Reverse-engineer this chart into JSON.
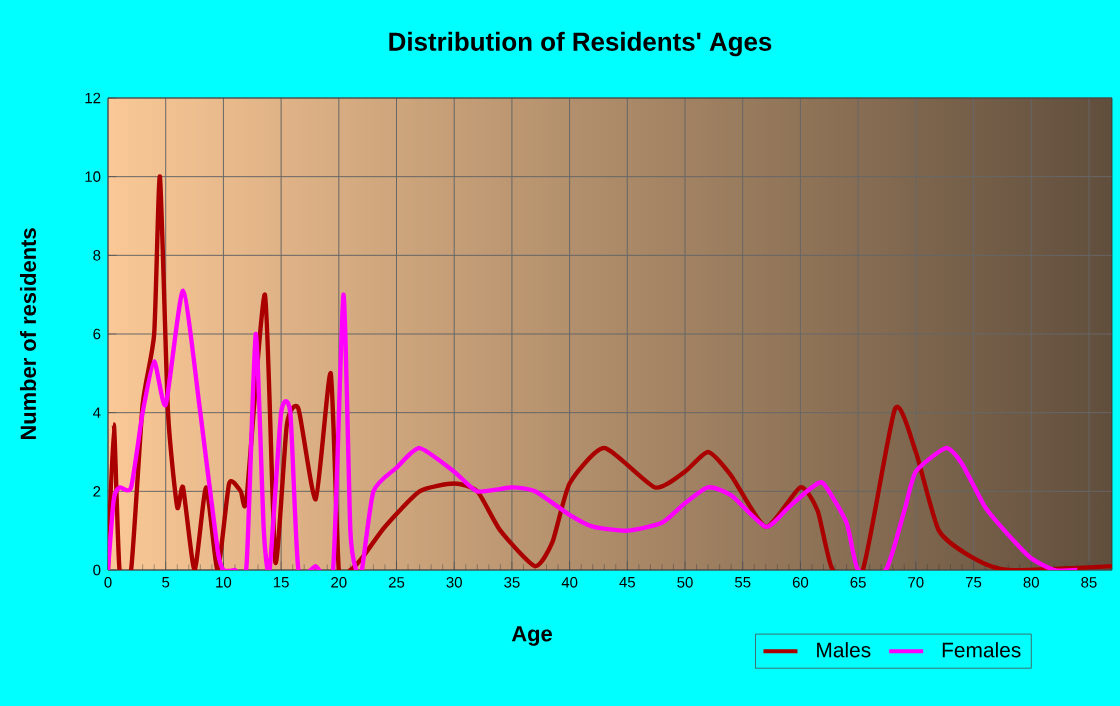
{
  "chart_data": {
    "type": "line",
    "title": "Distribution of Residents' Ages",
    "xlabel": "Age",
    "ylabel": "Number of residents",
    "xlim": [
      0,
      87
    ],
    "xticks": [
      0,
      5,
      10,
      15,
      20,
      25,
      30,
      35,
      40,
      45,
      50,
      55,
      60,
      65,
      70,
      75,
      80,
      85
    ],
    "ylim": [
      0,
      12
    ],
    "yticks": [
      0,
      2,
      4,
      6,
      8,
      10,
      12
    ],
    "grid": true,
    "legend": "bottom right",
    "marker": "none",
    "line_style": "solid",
    "series": [
      {
        "name": "Males",
        "color": "#aa0000",
        "x": [
          0,
          0.5,
          1,
          2,
          3,
          4,
          4.5,
          5.2,
          6,
          6.5,
          7.5,
          8.5,
          9.5,
          10.5,
          11.5,
          12,
          13.6,
          14.5,
          15.5,
          16.5,
          18,
          19.3,
          20,
          21,
          22,
          24,
          27,
          30,
          32,
          34,
          37,
          38.5,
          40,
          43,
          47.4,
          50,
          52,
          54,
          57,
          60,
          61.5,
          62.8,
          65.4,
          68.2,
          70,
          72,
          75,
          78,
          87
        ],
        "values": [
          0,
          3.7,
          0,
          0,
          4.2,
          6,
          10,
          4,
          1.6,
          2.1,
          0,
          2.1,
          0,
          2.2,
          2,
          1.8,
          7,
          0.2,
          3.7,
          4.1,
          1.8,
          5,
          0,
          0,
          0.3,
          1.1,
          2,
          2.2,
          2,
          1,
          0.1,
          0.7,
          2.2,
          3.1,
          2.1,
          2.5,
          3,
          2.4,
          1.1,
          2.1,
          1.5,
          0,
          0,
          4.1,
          3,
          1,
          0.3,
          0,
          0.1
        ]
      },
      {
        "name": "Females",
        "color": "#ff00ff",
        "x": [
          0,
          0.5,
          1,
          2,
          3,
          4,
          5,
          6.5,
          8,
          9.5,
          10,
          11,
          12,
          12.8,
          13.5,
          14,
          15,
          15.8,
          16.5,
          18,
          19.5,
          20.4,
          21,
          21.5,
          22,
          23,
          25,
          27,
          30,
          32,
          35,
          37,
          40,
          42,
          45,
          48,
          50,
          52,
          54,
          57,
          59,
          61,
          62,
          64,
          65,
          67.4,
          69,
          70,
          72.6,
          74,
          76,
          78,
          80,
          82,
          84
        ],
        "values": [
          0,
          1.8,
          2.1,
          2.1,
          4,
          5.3,
          4.2,
          7.1,
          4,
          0.5,
          0,
          0,
          0.1,
          6,
          1,
          0,
          4,
          4,
          0,
          0.1,
          0,
          7,
          1,
          0,
          0,
          2,
          2.6,
          3.1,
          2.5,
          2,
          2.1,
          2,
          1.4,
          1.1,
          1,
          1.2,
          1.7,
          2.1,
          1.9,
          1.1,
          1.6,
          2.1,
          2.2,
          1.2,
          0,
          0,
          1.5,
          2.5,
          3.1,
          2.7,
          1.6,
          0.9,
          0.3,
          0,
          0
        ]
      }
    ]
  }
}
